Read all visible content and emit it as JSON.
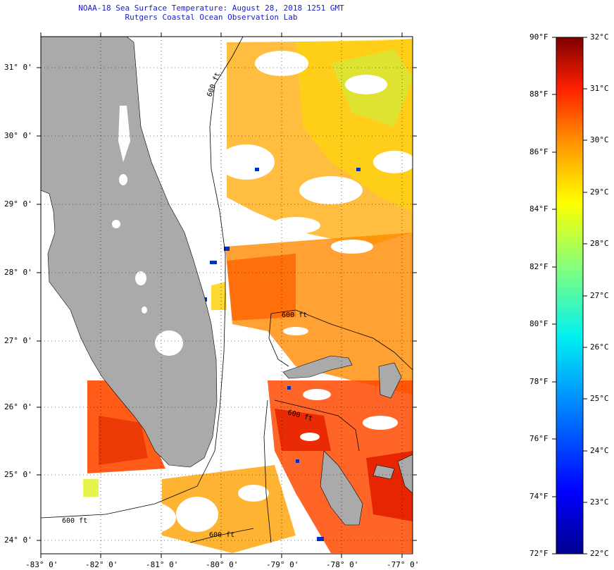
{
  "header": {
    "title": "NOAA-18 Sea Surface Temperature:  August 28, 2018 1251 GMT",
    "subtitle": "Rutgers Coastal Ocean Observation Lab"
  },
  "axes": {
    "lat_labels": [
      "31° 0'",
      "30° 0'",
      "29° 0'",
      "28° 0'",
      "27° 0'",
      "26° 0'",
      "25° 0'",
      "24° 0'"
    ],
    "lon_labels": [
      "-83° 0'",
      "-82° 0'",
      "-81° 0'",
      "-80° 0'",
      "-79° 0'",
      "-78° 0'",
      "-77° 0'"
    ],
    "lat_range": [
      23.8,
      31.45
    ],
    "lon_range": [
      -83.0,
      -76.85
    ]
  },
  "isobaths": [
    "600 ft",
    "600 ft",
    "600 ft",
    "600 ft",
    "600 ft"
  ],
  "colorbar": {
    "fahrenheit": [
      "90°F",
      "88°F",
      "86°F",
      "84°F",
      "82°F",
      "80°F",
      "78°F",
      "76°F",
      "74°F",
      "72°F"
    ],
    "celsius": [
      "32°C",
      "31°C",
      "30°C",
      "29°C",
      "28°C",
      "27°C",
      "26°C",
      "25°C",
      "24°C",
      "23°C",
      "22°C"
    ],
    "range_f": [
      72,
      90
    ],
    "range_c": [
      22,
      32
    ]
  },
  "colors": {
    "land": "#aaaaaa",
    "title": "#1a1acc",
    "warm": "#ff4a00",
    "hot": "#e61e00",
    "mild": "#ffa000",
    "cool": "#ffd800"
  }
}
